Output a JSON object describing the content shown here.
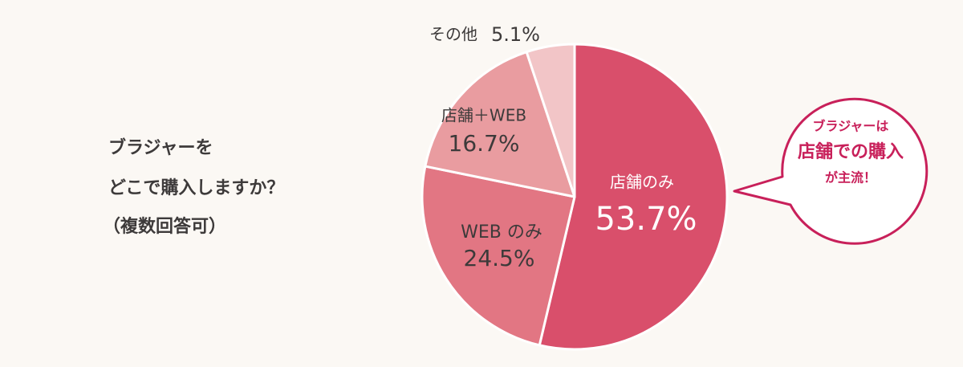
{
  "chart_data": {
    "type": "pie",
    "title_lines": [
      "ブラジャーを",
      "どこで購入しますか？",
      "（複数回答可）"
    ],
    "categories": [
      "店舗のみ",
      "WEB のみ",
      "店舗＋WEB",
      "その他"
    ],
    "values": [
      53.7,
      24.5,
      16.7,
      5.1
    ],
    "value_labels": [
      "53.7%",
      "24.5%",
      "16.7%",
      "5.1%"
    ],
    "colors": [
      "#d94f6b",
      "#e27683",
      "#e99ca0",
      "#f2c5c7"
    ],
    "annotation_lines": [
      "ブラジャーは",
      "店舗での購入",
      "が主流！"
    ]
  }
}
